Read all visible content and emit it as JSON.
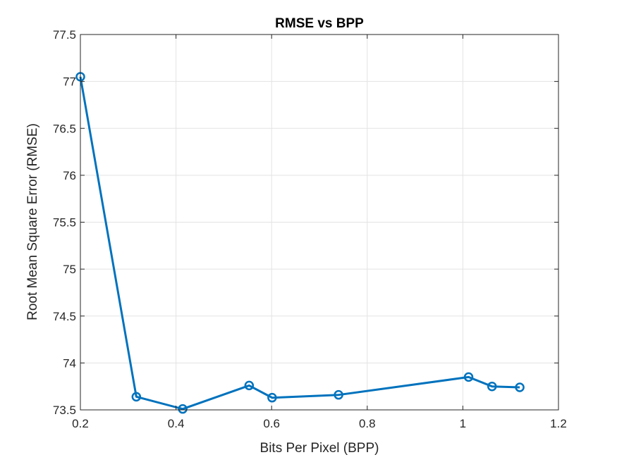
{
  "chart_data": {
    "type": "line",
    "title": "RMSE vs BPP",
    "xlabel": "Bits Per Pixel (BPP)",
    "ylabel": "Root Mean Square Error (RMSE)",
    "xlim": [
      0.2,
      1.2
    ],
    "ylim": [
      73.5,
      77.5
    ],
    "xticks": [
      0.2,
      0.4,
      0.6,
      0.8,
      1.0,
      1.2
    ],
    "xtick_labels": [
      "0.2",
      "0.4",
      "0.6",
      "0.8",
      "1",
      "1.2"
    ],
    "yticks": [
      73.5,
      74,
      74.5,
      75,
      75.5,
      76,
      76.5,
      77,
      77.5
    ],
    "ytick_labels": [
      "73.5",
      "74",
      "74.5",
      "75",
      "75.5",
      "76",
      "76.5",
      "77",
      "77.5"
    ],
    "grid": true,
    "series": [
      {
        "color": "#0072bd",
        "marker": "circle",
        "x": [
          0.2,
          0.317,
          0.414,
          0.553,
          0.601,
          0.74,
          1.012,
          1.061,
          1.119
        ],
        "y": [
          77.05,
          73.64,
          73.51,
          73.76,
          73.63,
          73.66,
          73.85,
          73.75,
          73.74
        ]
      }
    ]
  }
}
